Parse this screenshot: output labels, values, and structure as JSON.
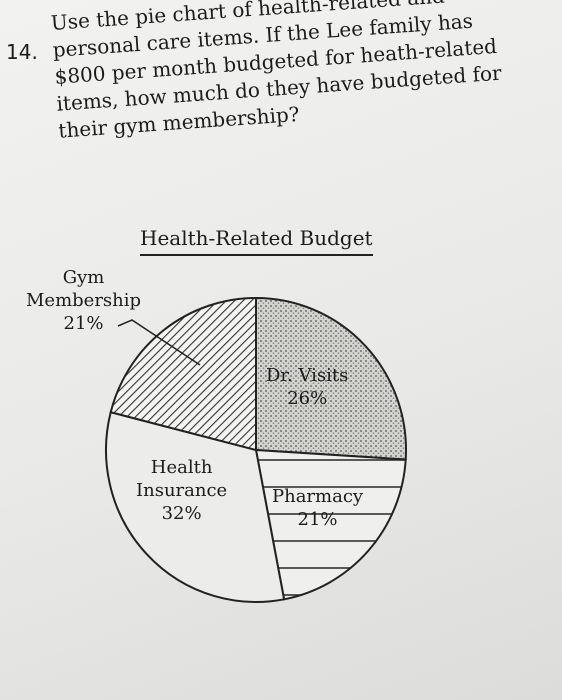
{
  "question": {
    "number": "14.",
    "lines": [
      "Use the pie chart of health-related and",
      "personal care items. If the Lee family has",
      "$800 per month budgeted for heath-related",
      "items, how much do they have budgeted for",
      "their gym membership?"
    ]
  },
  "chart_data": {
    "type": "pie",
    "title": "Health-Related Budget",
    "slices": [
      {
        "name": "Gym Membership",
        "name_lines": [
          "Gym",
          "Membership"
        ],
        "value": 21,
        "label": "21%",
        "pattern": "diagonal-hatch"
      },
      {
        "name": "Dr. Visits",
        "name_lines": [
          "Dr. Visits"
        ],
        "value": 26,
        "label": "26%",
        "pattern": "stipple"
      },
      {
        "name": "Pharmacy",
        "name_lines": [
          "Pharmacy"
        ],
        "value": 21,
        "label": "21%",
        "pattern": "horizontal-lines"
      },
      {
        "name": "Health Insurance",
        "name_lines": [
          "Health",
          "Insurance"
        ],
        "value": 32,
        "label": "32%",
        "pattern": "none"
      }
    ]
  }
}
